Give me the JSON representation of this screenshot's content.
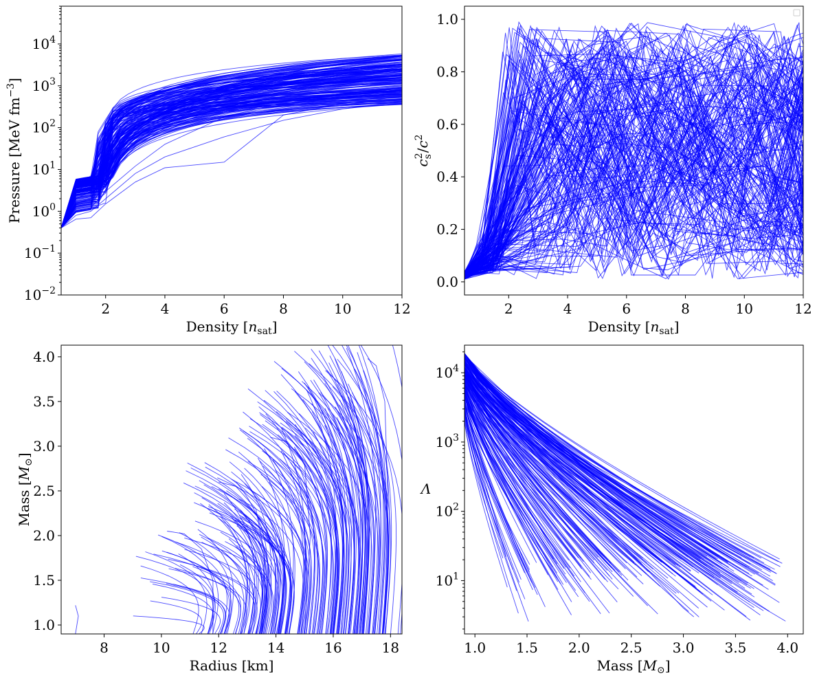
{
  "figure": {
    "panels": [
      {
        "id": "pressure-density",
        "xlabel": "Density [n_sat]",
        "ylabel": "Pressure [MeV fm^-3]",
        "curve_color": "#0000ff"
      },
      {
        "id": "soundspeed-density",
        "xlabel": "Density [n_sat]",
        "ylabel": "c_s^2/c^2",
        "curve_color": "#0000ff",
        "legend": "empty-box-top-right"
      },
      {
        "id": "mass-radius",
        "xlabel": "Radius [km]",
        "ylabel": "Mass [M_⊙]",
        "curve_color": "#0000ff"
      },
      {
        "id": "lambda-mass",
        "xlabel": "Mass [M_⊙]",
        "ylabel": "Λ",
        "curve_color": "#0000ff"
      }
    ]
  },
  "chart_data": [
    {
      "type": "line",
      "xlabel": "Density [n_sat]",
      "ylabel": "Pressure [MeV fm^-3]",
      "xlim": [
        0.5,
        12
      ],
      "ylim": [
        0.01,
        80000
      ],
      "yscale": "log",
      "xticks": [
        2,
        4,
        6,
        8,
        10,
        12
      ],
      "yticks": [
        0.01,
        0.1,
        1,
        10,
        100,
        1000,
        10000
      ],
      "ytick_labels": [
        "10^-2",
        "10^-1",
        "10^0",
        "10^1",
        "10^2",
        "10^3",
        "10^4"
      ],
      "grid": false,
      "series_count_approx": 200,
      "series": [
        {
          "x": [
            0.5,
            1,
            1.5,
            2,
            3,
            4,
            6,
            8,
            10,
            12
          ],
          "y": [
            0.4,
            4.0,
            7.0,
            60,
            350,
            900,
            2000,
            3200,
            4500,
            5800
          ]
        },
        {
          "x": [
            0.5,
            1,
            1.5,
            2,
            3,
            4,
            6,
            8,
            10,
            12
          ],
          "y": [
            0.4,
            3.0,
            5.0,
            30,
            180,
            420,
            900,
            1400,
            2000,
            2600
          ]
        },
        {
          "x": [
            0.5,
            1,
            1.5,
            2,
            3,
            4,
            6,
            8,
            10,
            12
          ],
          "y": [
            0.4,
            2.0,
            3.0,
            12,
            70,
            180,
            500,
            900,
            1300,
            1700
          ]
        },
        {
          "x": [
            0.5,
            1,
            1.5,
            2,
            3,
            4,
            6,
            8,
            10,
            12
          ],
          "y": [
            0.4,
            1.5,
            2.0,
            6,
            35,
            100,
            320,
            620,
            950,
            1300
          ]
        },
        {
          "x": [
            0.5,
            1,
            1.5,
            2,
            3,
            4,
            6,
            8,
            10,
            12
          ],
          "y": [
            0.4,
            1.0,
            1.2,
            3,
            12,
            40,
            180,
            400,
            650,
            900
          ]
        },
        {
          "x": [
            0.5,
            1,
            1.5,
            2,
            3,
            4,
            6,
            8,
            10,
            12
          ],
          "y": [
            0.4,
            0.65,
            0.7,
            1.5,
            5,
            11,
            15,
            200,
            380,
            550
          ]
        },
        {
          "x": [
            0.5,
            1,
            1.5,
            2,
            3,
            4,
            6,
            8,
            10,
            12
          ],
          "y": [
            0.4,
            0.8,
            1.0,
            2,
            8,
            20,
            60,
            150,
            280,
            420
          ]
        }
      ]
    },
    {
      "type": "line",
      "xlabel": "Density [n_sat]",
      "ylabel": "c_s^2/c^2",
      "xlim": [
        0.5,
        12
      ],
      "ylim": [
        -0.05,
        1.05
      ],
      "xticks": [
        2,
        4,
        6,
        8,
        10,
        12
      ],
      "yticks": [
        0.0,
        0.2,
        0.4,
        0.6,
        0.8,
        1.0
      ],
      "grid": false,
      "series_count_approx": 200,
      "series": [
        {
          "x": [
            0.5,
            1.0,
            1.6,
            2.5,
            4,
            6,
            8,
            10,
            12
          ],
          "y": [
            0.01,
            0.05,
            0.12,
            0.9,
            0.5,
            0.7,
            0.3,
            0.8,
            0.6
          ]
        },
        {
          "x": [
            0.5,
            1.0,
            1.6,
            3.0,
            5,
            7,
            9,
            11,
            12
          ],
          "y": [
            0.01,
            0.08,
            0.15,
            0.4,
            0.85,
            0.2,
            0.6,
            0.95,
            0.1
          ]
        },
        {
          "x": [
            0.5,
            1.2,
            2.0,
            3.5,
            5.5,
            7.5,
            9.5,
            11.5
          ],
          "y": [
            0.02,
            0.1,
            0.3,
            0.6,
            0.15,
            0.9,
            0.4,
            0.7
          ]
        }
      ]
    },
    {
      "type": "line",
      "xlabel": "Radius [km]",
      "ylabel": "Mass [M_⊙]",
      "xlim": [
        6.5,
        18.4
      ],
      "ylim": [
        0.9,
        4.13
      ],
      "xticks": [
        8,
        10,
        12,
        14,
        16,
        18
      ],
      "yticks": [
        1.0,
        1.5,
        2.0,
        2.5,
        3.0,
        3.5,
        4.0
      ],
      "grid": false,
      "series_count_approx": 200,
      "series": [
        {
          "x": [
            17.8,
            17.9,
            17.8,
            17.5,
            17.2
          ],
          "y": [
            0.9,
            2.5,
            3.5,
            3.9,
            3.98
          ]
        },
        {
          "x": [
            15.0,
            15.2,
            15.0,
            14.4,
            13.8
          ],
          "y": [
            0.9,
            2.0,
            2.8,
            3.05,
            3.1
          ]
        },
        {
          "x": [
            13.5,
            13.6,
            13.3,
            12.6,
            12.0
          ],
          "y": [
            0.9,
            1.8,
            2.3,
            2.55,
            2.6
          ]
        },
        {
          "x": [
            11.8,
            11.8,
            11.4,
            10.8,
            10.2
          ],
          "y": [
            0.9,
            1.5,
            1.85,
            2.02,
            2.05
          ]
        },
        {
          "x": [
            7.0,
            7.1,
            7.0
          ],
          "y": [
            0.9,
            1.1,
            1.22
          ]
        }
      ]
    },
    {
      "type": "line",
      "xlabel": "Mass [M_⊙]",
      "ylabel": "Λ",
      "xlim": [
        0.9,
        4.15
      ],
      "ylim": [
        1.7,
        25000
      ],
      "yscale": "log",
      "xticks": [
        1.0,
        1.5,
        2.0,
        2.5,
        3.0,
        3.5,
        4.0
      ],
      "yticks": [
        10,
        100,
        1000,
        10000
      ],
      "ytick_labels": [
        "10^1",
        "10^2",
        "10^3",
        "10^4"
      ],
      "grid": false,
      "series_count_approx": 200,
      "series": [
        {
          "x": [
            0.9,
            1.5,
            2.0,
            2.5,
            3.0,
            3.5,
            3.98
          ],
          "y": [
            18000,
            2500,
            500,
            100,
            25,
            7,
            2.6
          ]
        },
        {
          "x": [
            0.9,
            1.5,
            2.0,
            2.5,
            3.0,
            3.1
          ],
          "y": [
            12000,
            1000,
            150,
            25,
            4,
            3
          ]
        },
        {
          "x": [
            0.9,
            1.2,
            1.5,
            1.8,
            2.1
          ],
          "y": [
            6000,
            800,
            120,
            20,
            5
          ]
        },
        {
          "x": [
            0.9,
            1.1,
            1.3
          ],
          "y": [
            3000,
            250,
            22
          ]
        }
      ]
    }
  ]
}
